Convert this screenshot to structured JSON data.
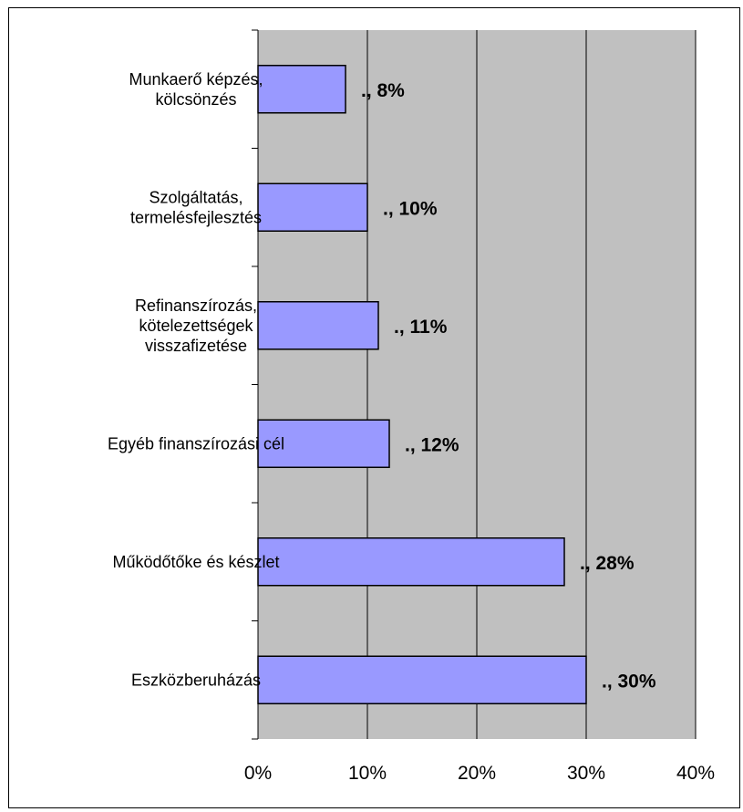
{
  "chart_data": {
    "type": "bar",
    "orientation": "horizontal",
    "categories": [
      [
        "Munkaerő képzés,",
        "kölcsönzés"
      ],
      [
        "Szolgáltatás,",
        "termelésfejlesztés"
      ],
      [
        "Refinanszírozás,",
        "kötelezettségek",
        "visszafizetése"
      ],
      [
        "Egyéb finanszírozási cél"
      ],
      [
        "Működőtőke és készlet"
      ],
      [
        "Eszközberuházás"
      ]
    ],
    "values": [
      8,
      10,
      11,
      12,
      28,
      30
    ],
    "data_labels": [
      ".,  8%",
      "., 10%",
      "., 11%",
      "., 12%",
      "., 28%",
      "., 30%"
    ],
    "xlim": [
      0,
      40
    ],
    "x_ticks": [
      0,
      10,
      20,
      30,
      40
    ],
    "x_tick_labels": [
      "0%",
      "10%",
      "20%",
      "30%",
      "40%"
    ],
    "grid": true,
    "legend": "none",
    "colors": {
      "bar_fill": "#9999ff",
      "bar_stroke": "#000000",
      "plot_background": "#c0c0c0",
      "gridline": "#000000"
    }
  }
}
